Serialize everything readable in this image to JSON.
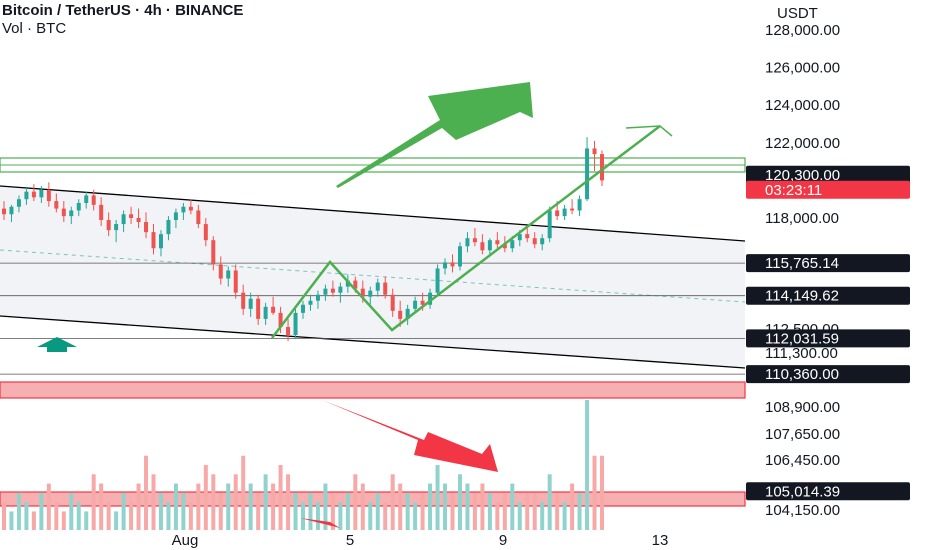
{
  "header": {
    "symbol": "Bitcoin / TetherUS · 4h · BINANCE",
    "volume": "Vol · BTC"
  },
  "axis": {
    "currency": "USDT",
    "price_ticks": [
      "128,000.00",
      "126,000.00",
      "124,000.00",
      "122,000.00",
      "118,000.00",
      "112,500.00",
      "111,300.00",
      "108,900.00",
      "107,650.00",
      "106,450.00",
      "104,150.00"
    ],
    "x_ticks": [
      "Aug",
      "5",
      "9",
      "13"
    ]
  },
  "price_tags": [
    {
      "label": "120,300.00",
      "value": 120300,
      "style": "dark"
    },
    {
      "label": "03:23:11",
      "value": 119500,
      "style": "red"
    },
    {
      "label": "115,765.14",
      "value": 115765.14,
      "style": "dark"
    },
    {
      "label": "114,149.62",
      "value": 114149.62,
      "style": "dark"
    },
    {
      "label": "112,031.59",
      "value": 112031.59,
      "style": "dark"
    },
    {
      "label": "110,360.00",
      "value": 110360,
      "style": "dark"
    },
    {
      "label": "105,014.39",
      "value": 105014.39,
      "style": "dark"
    }
  ],
  "colors": {
    "up": "#26a69a",
    "down": "#ef5350",
    "vol_up": "#8fd3cc",
    "vol_down": "#f7a9a7",
    "zone_green": "#4caf50",
    "zone_red": "#f23645",
    "channel": "#000000",
    "grid": "#cfd3dc"
  },
  "chart_data": {
    "type": "candlestick",
    "title": "Bitcoin / TetherUS · 4h · BINANCE",
    "ylim": [
      104150,
      128000
    ],
    "ohlc": [
      [
        118500,
        118900,
        117900,
        118200
      ],
      [
        118200,
        118700,
        117800,
        118600
      ],
      [
        118600,
        119200,
        118300,
        119000
      ],
      [
        119000,
        119600,
        118700,
        119400
      ],
      [
        119400,
        119800,
        118900,
        119100
      ],
      [
        119100,
        119700,
        118800,
        119500
      ],
      [
        119500,
        119900,
        118600,
        118900
      ],
      [
        118900,
        119300,
        118300,
        118500
      ],
      [
        118500,
        118900,
        117800,
        118100
      ],
      [
        118100,
        118600,
        117700,
        118400
      ],
      [
        118400,
        119000,
        118100,
        118800
      ],
      [
        118800,
        119400,
        118500,
        119200
      ],
      [
        119200,
        119500,
        118400,
        118700
      ],
      [
        118700,
        119100,
        117600,
        117900
      ],
      [
        117900,
        118300,
        117100,
        117400
      ],
      [
        117400,
        117900,
        116800,
        117700
      ],
      [
        117700,
        118400,
        117300,
        118200
      ],
      [
        118200,
        118600,
        117700,
        118000
      ],
      [
        118000,
        118500,
        117500,
        117800
      ],
      [
        117800,
        118300,
        117000,
        117300
      ],
      [
        117300,
        117700,
        116200,
        116500
      ],
      [
        116500,
        117400,
        116100,
        117200
      ],
      [
        117200,
        118100,
        116900,
        117900
      ],
      [
        117900,
        118500,
        117500,
        118300
      ],
      [
        118300,
        118800,
        117900,
        118600
      ],
      [
        118600,
        119000,
        118200,
        118400
      ],
      [
        118400,
        118700,
        117500,
        117700
      ],
      [
        117700,
        118000,
        116600,
        116900
      ],
      [
        116900,
        117100,
        115400,
        115700
      ],
      [
        115700,
        116100,
        114700,
        115000
      ],
      [
        115000,
        115600,
        114600,
        115400
      ],
      [
        115400,
        115700,
        114000,
        114300
      ],
      [
        114300,
        114700,
        113200,
        113500
      ],
      [
        113500,
        114300,
        113100,
        114000
      ],
      [
        114000,
        114200,
        112700,
        113000
      ],
      [
        113000,
        113800,
        112700,
        113600
      ],
      [
        113600,
        114100,
        113200,
        113300
      ],
      [
        113300,
        113600,
        112300,
        112600
      ],
      [
        112600,
        113000,
        111900,
        112200
      ],
      [
        112200,
        113500,
        112000,
        113300
      ],
      [
        113300,
        113900,
        113000,
        113700
      ],
      [
        113700,
        114200,
        113400,
        113900
      ],
      [
        113900,
        114400,
        113500,
        114200
      ],
      [
        114200,
        114700,
        113900,
        114500
      ],
      [
        114500,
        114900,
        114100,
        114300
      ],
      [
        114300,
        114800,
        113800,
        114600
      ],
      [
        114600,
        115200,
        114300,
        114900
      ],
      [
        114900,
        115100,
        114300,
        114500
      ],
      [
        114500,
        114900,
        113800,
        114100
      ],
      [
        114100,
        114600,
        113700,
        114400
      ],
      [
        114400,
        115000,
        114100,
        114800
      ],
      [
        114800,
        115100,
        114000,
        114200
      ],
      [
        114200,
        114500,
        113100,
        113400
      ],
      [
        113400,
        113900,
        112600,
        113000
      ],
      [
        113000,
        113700,
        112700,
        113500
      ],
      [
        113500,
        114100,
        113300,
        113900
      ],
      [
        113900,
        114300,
        113400,
        113700
      ],
      [
        113700,
        114500,
        113500,
        114300
      ],
      [
        114300,
        115700,
        114100,
        115500
      ],
      [
        115500,
        116000,
        115200,
        115800
      ],
      [
        115800,
        116200,
        115300,
        115600
      ],
      [
        115600,
        116800,
        115400,
        116600
      ],
      [
        116600,
        117300,
        116300,
        117000
      ],
      [
        117000,
        117500,
        116600,
        116800
      ],
      [
        116800,
        117200,
        116200,
        116400
      ],
      [
        116400,
        117000,
        116100,
        116900
      ],
      [
        116900,
        117300,
        116500,
        116700
      ],
      [
        116700,
        117100,
        116300,
        116500
      ],
      [
        116500,
        117100,
        116300,
        116900
      ],
      [
        116900,
        117400,
        116600,
        117200
      ],
      [
        117200,
        117600,
        116800,
        117000
      ],
      [
        117000,
        117300,
        116500,
        116700
      ],
      [
        116700,
        117200,
        116400,
        117000
      ],
      [
        117000,
        118600,
        116800,
        118400
      ],
      [
        118400,
        118900,
        117900,
        118100
      ],
      [
        118100,
        118700,
        117900,
        118500
      ],
      [
        118500,
        119000,
        118200,
        118400
      ],
      [
        118400,
        119200,
        118100,
        119000
      ],
      [
        119000,
        122300,
        118900,
        121700
      ],
      [
        121700,
        122100,
        120500,
        121400
      ],
      [
        121400,
        121600,
        119700,
        120000
      ]
    ],
    "volume": [
      3,
      2,
      4,
      3,
      2,
      4,
      5,
      3,
      2,
      4,
      3,
      2,
      6,
      5,
      3,
      2,
      4,
      3,
      5,
      8,
      6,
      4,
      3,
      5,
      4,
      3,
      5,
      7,
      6,
      4,
      5,
      6,
      8,
      5,
      4,
      6,
      5,
      7,
      6,
      4,
      3,
      4,
      3,
      5,
      4,
      3,
      4,
      6,
      5,
      3,
      4,
      3,
      6,
      5,
      4,
      3,
      4,
      5,
      7,
      5,
      4,
      6,
      5,
      4,
      5,
      4,
      3,
      4,
      5,
      3,
      4,
      4,
      3,
      6,
      4,
      3,
      5,
      4,
      14,
      8,
      8
    ]
  }
}
